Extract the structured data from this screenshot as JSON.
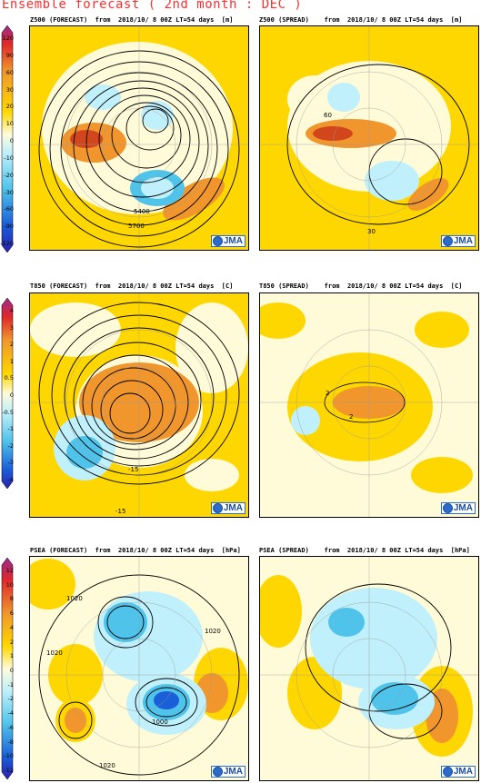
{
  "title": "Ensemble forecast ( 2nd month : DEC )",
  "logo_text": "JMA",
  "rows": [
    {
      "forecast_header": {
        "name": "Z500 (FORECAST)",
        "from": "from",
        "date": "2018/10/ 8 00Z LT=54 days",
        "unit": "[m]"
      },
      "spread_header": {
        "name": "Z500 (SPREAD)",
        "from": "from",
        "date": "2018/10/ 8 00Z LT=54 days",
        "unit": "[m]"
      },
      "colorbar_ticks": [
        "120",
        "90",
        "60",
        "30",
        "20",
        "10",
        "0",
        "-10",
        "-20",
        "-30",
        "-60",
        "-90",
        "-120"
      ],
      "forecast_labels": [
        "5400",
        "5700"
      ],
      "spread_labels": [
        "30",
        "60"
      ]
    },
    {
      "forecast_header": {
        "name": "T850 (FORECAST)",
        "from": "from",
        "date": "2018/10/ 8 00Z LT=54 days",
        "unit": "[C]"
      },
      "spread_header": {
        "name": "T850 (SPREAD)",
        "from": "from",
        "date": "2018/10/ 8 00Z LT=54 days",
        "unit": "[C]"
      },
      "colorbar_ticks": [
        "4",
        "3",
        "2",
        "1",
        "0.5",
        "0",
        "-0.5",
        "-1",
        "-2",
        "-3",
        "-4"
      ],
      "forecast_labels": [
        "-15",
        "-15"
      ],
      "spread_labels": [
        "2",
        "2"
      ]
    },
    {
      "forecast_header": {
        "name": "PSEA (FORECAST)",
        "from": "from",
        "date": "2018/10/ 8 00Z LT=54 days",
        "unit": "[hPa]"
      },
      "spread_header": {
        "name": "PSEA (SPREAD)",
        "from": "from",
        "date": "2018/10/ 8 00Z LT=54 days",
        "unit": "[hPa]"
      },
      "colorbar_ticks": [
        "12",
        "10",
        "8",
        "6",
        "4",
        "2",
        "1",
        "0",
        "-1",
        "-2",
        "-4",
        "-6",
        "-8",
        "-10",
        "-12"
      ],
      "forecast_labels": [
        "1020",
        "1020",
        "1020",
        "1000",
        "1020"
      ],
      "spread_labels": []
    }
  ],
  "colors": {
    "positive_strong": "#d2461e",
    "positive_mid": "#f0962d",
    "positive_weak": "#ffd700",
    "neutral": "#fffbd9",
    "negative_weak": "#bff0fb",
    "negative_mid": "#4fc3ea",
    "title": "#ff3030"
  }
}
